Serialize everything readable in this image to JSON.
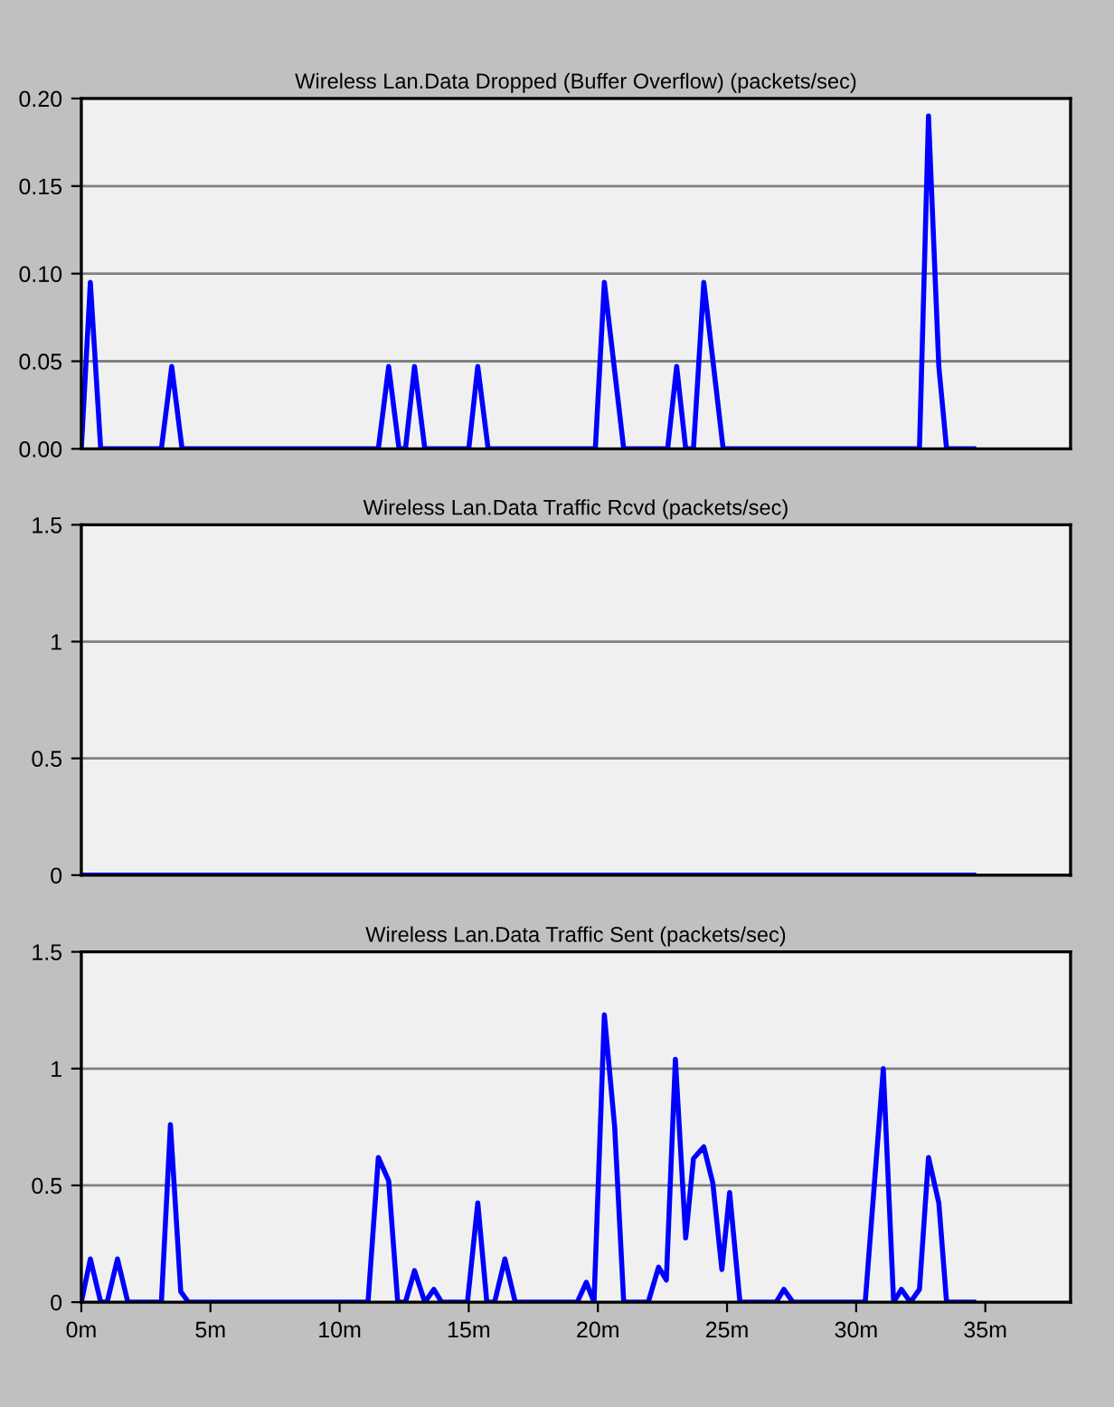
{
  "chart_data": [
    {
      "type": "line",
      "title": "Wireless Lan.Data Dropped (Buffer Overflow) (packets/sec)",
      "xlim": [
        0,
        38.3
      ],
      "ylim": [
        0,
        0.2
      ],
      "yticks": [
        {
          "value": 0,
          "label": "0.00"
        },
        {
          "value": 0.05,
          "label": "0.05"
        },
        {
          "value": 0.1,
          "label": "0.10"
        },
        {
          "value": 0.15,
          "label": "0.15"
        },
        {
          "value": 0.2,
          "label": "0.20"
        }
      ],
      "grid": "y",
      "tick_labels": "y",
      "marker": "none",
      "line_style": "solid",
      "series": [
        {
          "color": "#0000ff",
          "x": [
            0,
            0.35,
            0.75,
            3.1,
            3.5,
            3.9,
            11.5,
            11.9,
            12.3,
            12.55,
            12.9,
            13.3,
            15.0,
            15.35,
            15.75,
            19.9,
            20.25,
            21.0,
            22.7,
            23.05,
            23.4,
            23.7,
            24.1,
            24.85,
            32.45,
            32.8,
            33.2,
            33.5,
            34.55
          ],
          "values": [
            0,
            0.095,
            0,
            0,
            0.047,
            0,
            0,
            0.047,
            0,
            0,
            0.047,
            0,
            0,
            0.047,
            0,
            0,
            0.095,
            0,
            0,
            0.047,
            0,
            0,
            0.095,
            0,
            0,
            0.19,
            0.047,
            0,
            0
          ]
        }
      ]
    },
    {
      "type": "line",
      "title": "Wireless Lan.Data Traffic Rcvd (packets/sec)",
      "xlim": [
        0,
        38.3
      ],
      "ylim": [
        0,
        1.5
      ],
      "yticks": [
        0,
        0.5,
        1,
        1.5
      ],
      "grid": "y",
      "tick_labels": "y",
      "marker": "none",
      "line_style": "solid",
      "series": [
        {
          "color": "#0000ff",
          "x": [
            0,
            34.55
          ],
          "values": [
            0,
            0
          ]
        }
      ]
    },
    {
      "type": "line",
      "title": "Wireless Lan.Data Traffic Sent (packets/sec)",
      "xlim": [
        0,
        38.3
      ],
      "xticks": [
        {
          "value": 0,
          "label": "0m"
        },
        {
          "value": 5,
          "label": "5m"
        },
        {
          "value": 10,
          "label": "10m"
        },
        {
          "value": 15,
          "label": "15m"
        },
        {
          "value": 20,
          "label": "20m"
        },
        {
          "value": 25,
          "label": "25m"
        },
        {
          "value": 30,
          "label": "30m"
        },
        {
          "value": 35,
          "label": "35m"
        }
      ],
      "ylim": [
        0,
        1.5
      ],
      "yticks": [
        0,
        0.5,
        1,
        1.5
      ],
      "grid": "y",
      "marker": "none",
      "line_style": "solid",
      "series": [
        {
          "color": "#0000ff",
          "x": [
            0,
            0.35,
            0.75,
            1.0,
            1.4,
            1.8,
            3.1,
            3.45,
            3.85,
            4.15,
            11.1,
            11.5,
            11.9,
            12.25,
            12.55,
            12.9,
            13.3,
            13.65,
            13.95,
            14.95,
            15.35,
            15.7,
            16.0,
            16.4,
            16.8,
            19.2,
            19.55,
            19.85,
            20.25,
            20.65,
            21.0,
            21.95,
            22.35,
            22.65,
            23.0,
            23.4,
            23.7,
            24.1,
            24.45,
            24.8,
            25.1,
            25.5,
            26.9,
            27.2,
            27.55,
            30.35,
            31.05,
            31.45,
            31.75,
            32.1,
            32.45,
            32.8,
            33.2,
            33.5,
            34.55
          ],
          "values": [
            0,
            0.185,
            0,
            0,
            0.185,
            0,
            0,
            0.76,
            0.045,
            0,
            0,
            0.62,
            0.52,
            0,
            0,
            0.135,
            0,
            0.055,
            0,
            0,
            0.425,
            0,
            0,
            0.185,
            0,
            0,
            0.085,
            0,
            1.23,
            0.75,
            0,
            0,
            0.15,
            0.095,
            1.04,
            0.275,
            0.615,
            0.665,
            0.51,
            0.14,
            0.47,
            0,
            0,
            0.055,
            0,
            0,
            1.0,
            0,
            0.055,
            0,
            0.055,
            0.62,
            0.425,
            0,
            0
          ]
        }
      ]
    }
  ]
}
